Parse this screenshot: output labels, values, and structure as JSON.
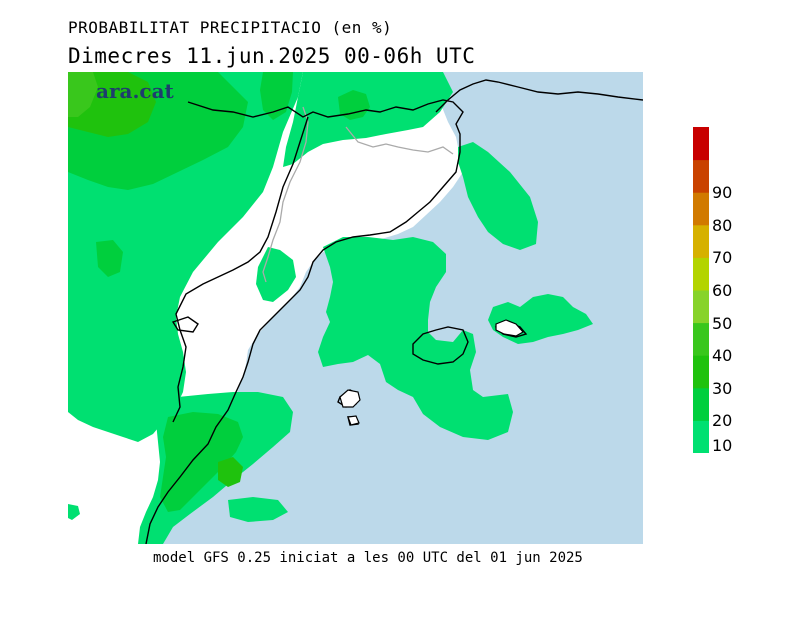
{
  "header": {
    "title": "PROBABILITAT PRECIPITACIO (en %)",
    "subtitle": "Dimecres  11.jun.2025 00-06h UTC"
  },
  "map": {
    "brand": "ara.cat",
    "sea_color": "#bcd9ea",
    "land_no_prob_color": "#ffffff",
    "coastline_color": "#000000",
    "border_color": "#aaaaaa"
  },
  "legend": {
    "levels": [
      {
        "label": "10",
        "color": "#00e071"
      },
      {
        "label": "20",
        "color": "#00cf3d"
      },
      {
        "label": "30",
        "color": "#1fc20d"
      },
      {
        "label": "40",
        "color": "#39c71c"
      },
      {
        "label": "50",
        "color": "#87d32a"
      },
      {
        "label": "60",
        "color": "#b3d400"
      },
      {
        "label": "70",
        "color": "#d6b100"
      },
      {
        "label": "80",
        "color": "#d17a00"
      },
      {
        "label": "90",
        "color": "#c94200"
      },
      {
        "label": "",
        "color": "#c80000"
      }
    ]
  },
  "footer": {
    "text": "model GFS 0.25 iniciat a les 00 UTC del 01 jun 2025"
  }
}
